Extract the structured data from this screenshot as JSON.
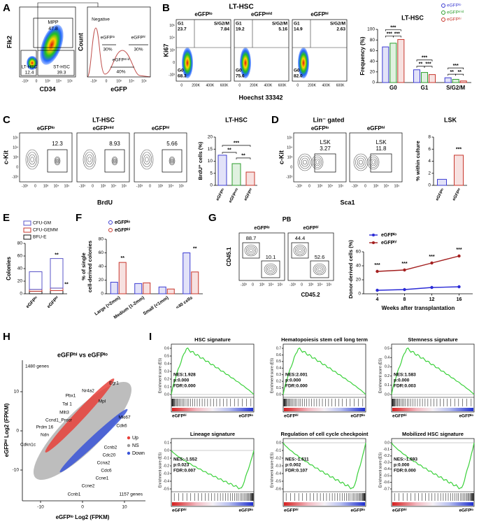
{
  "A": {
    "letter": "A",
    "left": {
      "ylabel": "Flk2",
      "xlabel": "CD34",
      "ticks": [
        "-10³",
        "0",
        "10³",
        "10⁴",
        "10⁵"
      ],
      "gates": [
        [
          "MPP",
          "47.8"
        ],
        [
          "LT-HSC",
          "12.4"
        ],
        [
          "ST-HSC",
          "39.3"
        ]
      ]
    },
    "right": {
      "ylabel": "Count",
      "xlabel": "eGFP",
      "ticks": [
        "-10³",
        "0",
        "10³",
        "10⁴",
        "10⁵"
      ],
      "negative": "Negative",
      "gates": [
        [
          "eGFPˡᵒ",
          "30%"
        ],
        [
          "eGFPʰⁱ",
          "30%"
        ],
        [
          "eGFPᵐⁱᵈ",
          "40%"
        ]
      ]
    }
  },
  "B": {
    "letter": "B",
    "title": "LT-HSC",
    "ylabel": "Ki67",
    "xlabel": "Hoechst 33342",
    "xticks": [
      "0",
      "200K",
      "400K",
      "600K"
    ],
    "yticks": [
      "10⁵",
      "10⁴",
      "10³",
      "0",
      "-10³"
    ],
    "phases": [
      "G1",
      "S/G2/M",
      "G0"
    ],
    "plots": [
      {
        "name": "eGFPˡᵒ",
        "values": [
          "23.7",
          "7.84",
          "68.3"
        ]
      },
      {
        "name": "eGFPᵐⁱᵈ",
        "values": [
          "19.2",
          "5.16",
          "75.6"
        ]
      },
      {
        "name": "eGFPʰⁱ",
        "values": [
          "14.9",
          "2.63",
          "82.0"
        ]
      }
    ],
    "chart": {
      "title": "LT-HSC",
      "ylabel": "Frequency (%)",
      "categories": [
        "G0",
        "G1",
        "S/G2/M"
      ],
      "series": [
        {
          "name": "eGFPˡᵒ",
          "color": "#3c3cd2",
          "values": [
            67,
            24,
            9
          ]
        },
        {
          "name": "eGFPᵐⁱᵈ",
          "color": "#2e9e2e",
          "values": [
            74,
            19,
            6
          ]
        },
        {
          "name": "eGFPʰⁱ",
          "color": "#c8372d",
          "values": [
            81,
            15,
            3
          ]
        }
      ],
      "ylim": [
        0,
        100
      ],
      "yticks": [
        0,
        20,
        40,
        60,
        80,
        100
      ],
      "sig": [
        {
          "text": "***",
          "group": 0,
          "from": 0,
          "to": 2
        },
        {
          "text": "***",
          "group": 0,
          "from": 0,
          "to": 1
        },
        {
          "text": "***",
          "group": 0,
          "from": 1,
          "to": 2
        },
        {
          "text": "***",
          "group": 1,
          "from": 0,
          "to": 2
        },
        {
          "text": "**",
          "group": 1,
          "from": 0,
          "to": 1
        },
        {
          "text": "***",
          "group": 1,
          "from": 1,
          "to": 2
        },
        {
          "text": "***",
          "group": 2,
          "from": 0,
          "to": 2
        },
        {
          "text": "**",
          "group": 2,
          "from": 0,
          "to": 1
        },
        {
          "text": "**",
          "group": 2,
          "from": 1,
          "to": 2
        }
      ]
    }
  },
  "C": {
    "letter": "C",
    "title": "LT-HSC",
    "ylabel": "c-Kit",
    "xlabel": "BrdU",
    "ticks": [
      "-10³",
      "0",
      "10³",
      "10⁴",
      "10⁵"
    ],
    "yticks": [
      "10⁵",
      "10⁴",
      "10³",
      "0",
      "-10³"
    ],
    "plots": [
      {
        "name": "eGFPˡᵒ",
        "value": "12.3"
      },
      {
        "name": "eGFPᵐⁱᵈ",
        "value": "8.93"
      },
      {
        "name": "eGFPʰⁱ",
        "value": "5.66"
      }
    ],
    "chart": {
      "title": "LT-HSC",
      "ylabel": "BrdU⁺ cells (%)",
      "categories": [
        "eGFPˡᵒ",
        "eGFPᵐⁱᵈ",
        "eGFPʰⁱ"
      ],
      "values": [
        12.5,
        9,
        5.5
      ],
      "colors": [
        "#3c3cd2",
        "#2e9e2e",
        "#c8372d"
      ],
      "ylim": [
        0,
        20
      ],
      "yticks": [
        0,
        5,
        10,
        15,
        20
      ],
      "sig": [
        {
          "text": "***",
          "from": 0,
          "to": 2
        },
        {
          "text": "**",
          "from": 0,
          "to": 1
        },
        {
          "text": "**",
          "from": 1,
          "to": 2
        }
      ]
    }
  },
  "D": {
    "letter": "D",
    "title": "Lin⁻ gated",
    "ylabel": "c-Kit",
    "xlabel": "Sca1",
    "ticks": [
      "-10³",
      "0",
      "10³",
      "10⁴",
      "10⁵"
    ],
    "yticks": [
      "10⁵",
      "10⁴",
      "10³",
      "0",
      "-10³"
    ],
    "plots": [
      {
        "name": "eGFPˡᵒ",
        "gate": "LSK",
        "value": "3.27"
      },
      {
        "name": "eGFPʰⁱ",
        "gate": "LSK",
        "value": "11.8"
      }
    ],
    "chart": {
      "title": "LSK",
      "ylabel": "% within culture",
      "categories": [
        "eGFPˡᵒ",
        "eGFPʰⁱ"
      ],
      "values": [
        1,
        5
      ],
      "colors": [
        "#3c3cd2",
        "#c8372d"
      ],
      "ylim": [
        0,
        8
      ],
      "yticks": [
        0,
        2,
        4,
        6,
        8
      ],
      "sig": [
        {
          "text": "***",
          "bar": 1
        }
      ]
    }
  },
  "E": {
    "letter": "E",
    "chart": {
      "ylabel": "Colonies",
      "categories": [
        "eGFPˡᵒ",
        "eGFPʰⁱ"
      ],
      "series": [
        {
          "name": "CFU-GM",
          "color": "#5a55c8",
          "values": [
            28,
            47
          ]
        },
        {
          "name": "CFU-GEMM",
          "color": "#c8372d",
          "values": [
            3,
            4
          ]
        },
        {
          "name": "BFU-E",
          "color": "#111111",
          "values": [
            4,
            5
          ]
        }
      ],
      "ylim": [
        0,
        80
      ],
      "yticks": [
        0,
        20,
        40,
        60,
        80
      ],
      "sig": [
        {
          "text": "**",
          "category": 1,
          "segment": 0
        },
        {
          "text": "**",
          "category": 1,
          "segment": 1
        }
      ]
    }
  },
  "F": {
    "letter": "F",
    "chart": {
      "ylabel": [
        "% of single",
        "cell-derived colonies"
      ],
      "categories": [
        "Large (>2mm)",
        "Medium (1-2mm)",
        "Small (<1mm)",
        "<40 cells"
      ],
      "series": [
        {
          "name": "eGFPˡᵒ",
          "color": "#3c3cd2",
          "values": [
            17,
            15,
            10,
            60
          ]
        },
        {
          "name": "eGFPʰⁱ",
          "color": "#c8372d",
          "values": [
            46,
            16,
            7,
            32
          ]
        }
      ],
      "ylim": [
        0,
        80
      ],
      "yticks": [
        0,
        20,
        40,
        60,
        80
      ],
      "sig": [
        {
          "text": "**",
          "group": 0
        },
        {
          "text": "**",
          "group": 3
        }
      ]
    }
  },
  "G": {
    "letter": "G",
    "title": "PB",
    "ylabel": "CD45.1",
    "xlabel": "CD45.2",
    "ticks": [
      "-10³",
      "0",
      "10³",
      "10⁴",
      "10⁵"
    ],
    "plots": [
      {
        "name": "eGFPˡᵒ",
        "values": [
          "88.7",
          "10.1"
        ]
      },
      {
        "name": "eGFPʰⁱ",
        "values": [
          "44.4",
          "52.6"
        ]
      }
    ],
    "chart": {
      "type": "line",
      "ylabel": "Donor-derived cells (%)",
      "xlabel": "Weeks after transplantation",
      "x": [
        4,
        8,
        12,
        16
      ],
      "xlim": [
        2,
        18
      ],
      "series": [
        {
          "name": "eGFPˡᵒ",
          "color": "#2b2bd6",
          "values": [
            5,
            6,
            9,
            10
          ]
        },
        {
          "name": "eGFPʰⁱ",
          "color": "#a31f1f",
          "values": [
            32,
            34,
            44,
            54
          ]
        }
      ],
      "ylim": [
        0,
        60
      ],
      "yticks": [
        0,
        20,
        40,
        60
      ],
      "sig": [
        "***",
        "***",
        "***",
        "***"
      ]
    }
  },
  "H": {
    "letter": "H",
    "title": "eGFPʰⁱ vs eGFPˡᵒ",
    "ylabel": "eGFPʰⁱ Log2 (FPKM)",
    "xlabel": "eGFPˡᵒ Log2 (FPKM)",
    "xticks": [
      "-10",
      "0",
      "10"
    ],
    "yticks": [
      "10",
      "0",
      "-10"
    ],
    "up_count": "1480 genes",
    "down_count": "1157 genes",
    "legend": [
      "Up",
      "NS",
      "Down"
    ],
    "up": [
      "Pbx1",
      "Nr4a2",
      "Egr1",
      "Tal 1",
      "Mpl",
      "Mllt3",
      "Ccnd1_Procr",
      "Prdm 16",
      "Ndn",
      "Cdkn1c"
    ],
    "down": [
      "Mki67",
      "Cdk6",
      "Ccnb2",
      "Cdc20",
      "Ccna2",
      "Cdc6",
      "Ccne1",
      "Ccne2",
      "Ccnb1"
    ]
  },
  "I": {
    "letter": "I",
    "ylabel": "Enrichment score (ES)",
    "hi": "eGFPʰⁱ",
    "lo": "eGFPˡᵒ",
    "plots": [
      {
        "title": "HSC signature",
        "nes": "NES:1.928",
        "p": "p:0.000",
        "fdr": "FDR:0.000",
        "yticks": [
          "0.6",
          "0.5",
          "0.4",
          "0.3",
          "0.2",
          "0.1",
          "0.0"
        ]
      },
      {
        "title": "Hematopoiesis stem cell long term",
        "nes": "NES:2.001",
        "p": "p:0.000",
        "fdr": "FDR:0.000",
        "yticks": [
          "0.7",
          "0.6",
          "0.5",
          "0.4",
          "0.3",
          "0.2",
          "0.1",
          "0.0"
        ]
      },
      {
        "title": "Stemness signature",
        "nes": "NES:1.583",
        "p": "p:0.000",
        "fdr": "FDR:0.003",
        "yticks": [
          "0.5",
          "0.4",
          "0.3",
          "0.2",
          "0.1",
          "0.0"
        ]
      },
      {
        "title": "Lineage signature",
        "nes": "NES:-1.552",
        "p": "p:0.023",
        "fdr": "FDR:0.007",
        "yticks": [
          "0.1",
          "0.0",
          "-0.1",
          "-0.2",
          "-0.3",
          "-0.4",
          "-0.5"
        ]
      },
      {
        "title": "Regulation of cell cycle checkpoint",
        "nes": "NES:-1.611",
        "p": "p:0.002",
        "fdr": "FDR:0.107",
        "yticks": [
          "0.0",
          "-0.1",
          "-0.2",
          "-0.3",
          "-0.4",
          "-0.5",
          "-0.6"
        ]
      },
      {
        "title": "Mobilized HSC signature",
        "nes": "NES:-1.693",
        "p": "p:0.000",
        "fdr": "FDR:0.000",
        "yticks": [
          "0.0",
          "-0.1",
          "-0.2",
          "-0.3",
          "-0.4",
          "-0.5",
          "-0.6",
          "-0.7"
        ]
      }
    ]
  }
}
